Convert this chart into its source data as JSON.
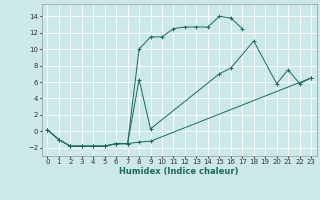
{
  "xlabel": "Humidex (Indice chaleur)",
  "bg_color": "#cce8e8",
  "grid_color": "#ffffff",
  "line_color": "#1a6b5a",
  "xlim": [
    -0.5,
    23.5
  ],
  "ylim": [
    -3,
    15.5
  ],
  "xticks": [
    0,
    1,
    2,
    3,
    4,
    5,
    6,
    7,
    8,
    9,
    10,
    11,
    12,
    13,
    14,
    15,
    16,
    17,
    18,
    19,
    20,
    21,
    22,
    23
  ],
  "yticks": [
    -2,
    0,
    2,
    4,
    6,
    8,
    10,
    12,
    14
  ],
  "line1_x": [
    0,
    1,
    2,
    3,
    4,
    5,
    6,
    7,
    8,
    9,
    10,
    11,
    12,
    13,
    14,
    15,
    16,
    17
  ],
  "line1_y": [
    0.2,
    -1.0,
    -1.8,
    -1.8,
    -1.8,
    -1.8,
    -1.5,
    -1.5,
    10.0,
    11.5,
    11.5,
    12.5,
    12.7,
    12.7,
    12.7,
    14.0,
    13.8,
    12.5
  ],
  "line2_x": [
    0,
    1,
    2,
    3,
    4,
    5,
    6,
    7,
    8,
    9,
    15,
    16,
    18,
    20,
    21,
    22,
    23
  ],
  "line2_y": [
    0.2,
    -1.0,
    -1.8,
    -1.8,
    -1.8,
    -1.8,
    -1.5,
    -1.5,
    6.3,
    0.3,
    7.0,
    7.7,
    11.0,
    5.8,
    7.5,
    5.8,
    6.5
  ],
  "line3_x": [
    0,
    1,
    2,
    3,
    4,
    5,
    6,
    7,
    8,
    9,
    23
  ],
  "line3_y": [
    0.2,
    -1.0,
    -1.8,
    -1.8,
    -1.8,
    -1.8,
    -1.5,
    -1.5,
    -1.3,
    -1.2,
    6.5
  ]
}
